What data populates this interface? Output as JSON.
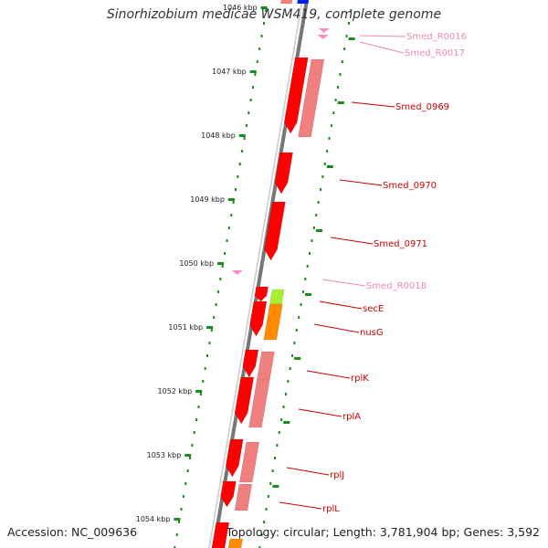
{
  "title": "Sinorhizobium medicae WSM419, complete genome",
  "footer": {
    "accession": "Accession: NC_009636",
    "topology": "Topology: circular; Length: 3,781,904 bp; Genes: 3,592"
  },
  "colors": {
    "backbone": "#777777",
    "gene_red": "#ff0000",
    "gene_pink": "#f08080",
    "rna_pink": "#ff88cc",
    "secE_box": "#aaee33",
    "nusG_box": "#ff8c00",
    "ticks": "#1a8a1a",
    "label_red": "#cc0000",
    "label_pink": "#ee88bb"
  },
  "kbp_ticks": [
    "1046 kbp",
    "1047 kbp",
    "1048 kbp",
    "1049 kbp",
    "1050 kbp",
    "1051 kbp",
    "1052 kbp",
    "1053 kbp",
    "1054 kbp"
  ],
  "genes": [
    {
      "label": "Smed_R0016",
      "kind": "rna"
    },
    {
      "label": "Smed_R0017",
      "kind": "rna"
    },
    {
      "label": "Smed_0969",
      "kind": "cds"
    },
    {
      "label": "Smed_0970",
      "kind": "cds"
    },
    {
      "label": "Smed_0971",
      "kind": "cds"
    },
    {
      "label": "Smed_R0018",
      "kind": "rna"
    },
    {
      "label": "secE",
      "kind": "cds"
    },
    {
      "label": "nusG",
      "kind": "cds"
    },
    {
      "label": "rplK",
      "kind": "cds"
    },
    {
      "label": "rplA",
      "kind": "cds"
    },
    {
      "label": "rplJ",
      "kind": "cds"
    },
    {
      "label": "rplL",
      "kind": "cds"
    }
  ]
}
